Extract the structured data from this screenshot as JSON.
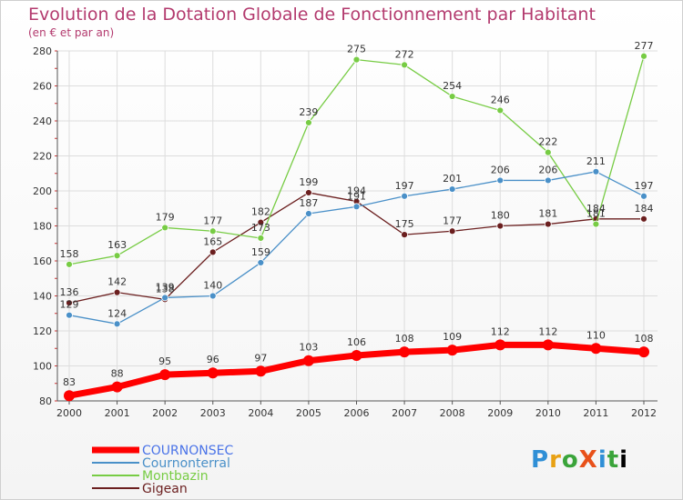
{
  "header": {
    "title": "Evolution de la Dotation Globale de Fonctionnement par Habitant",
    "subtitle": "(en € et par an)"
  },
  "logo_text": "ProXiti",
  "colors": {
    "title": "#b33a6e",
    "grid": "#dddddd",
    "axis": "#555555"
  },
  "chart_data": {
    "type": "line",
    "title": "Evolution de la Dotation Globale de Fonctionnement par Habitant",
    "subtitle": "(en € et par an)",
    "x": [
      "2000",
      "2001",
      "2002",
      "2003",
      "2004",
      "2005",
      "2006",
      "2007",
      "2008",
      "2009",
      "2010",
      "2011",
      "2012"
    ],
    "ylim": [
      80,
      280
    ],
    "yticks": [
      80,
      100,
      120,
      140,
      160,
      180,
      200,
      220,
      240,
      260,
      280
    ],
    "grid": true,
    "legend_position": "bottom-left",
    "series": [
      {
        "name": "COURNONSEC",
        "color": "#ff0000",
        "values": [
          83,
          88,
          95,
          96,
          97,
          103,
          106,
          108,
          109,
          112,
          112,
          110,
          108
        ]
      },
      {
        "name": "Cournonterral",
        "color": "#4a90c8",
        "values": [
          129,
          124,
          139,
          140,
          159,
          187,
          191,
          197,
          201,
          206,
          206,
          211,
          197
        ]
      },
      {
        "name": "Montbazin",
        "color": "#77cc44",
        "values": [
          158,
          163,
          179,
          177,
          173,
          239,
          275,
          272,
          254,
          246,
          222,
          181,
          277
        ]
      },
      {
        "name": "Gigean",
        "color": "#6b1f1f",
        "values": [
          136,
          142,
          138,
          165,
          182,
          199,
          194,
          175,
          177,
          180,
          181,
          184,
          184
        ]
      }
    ]
  }
}
